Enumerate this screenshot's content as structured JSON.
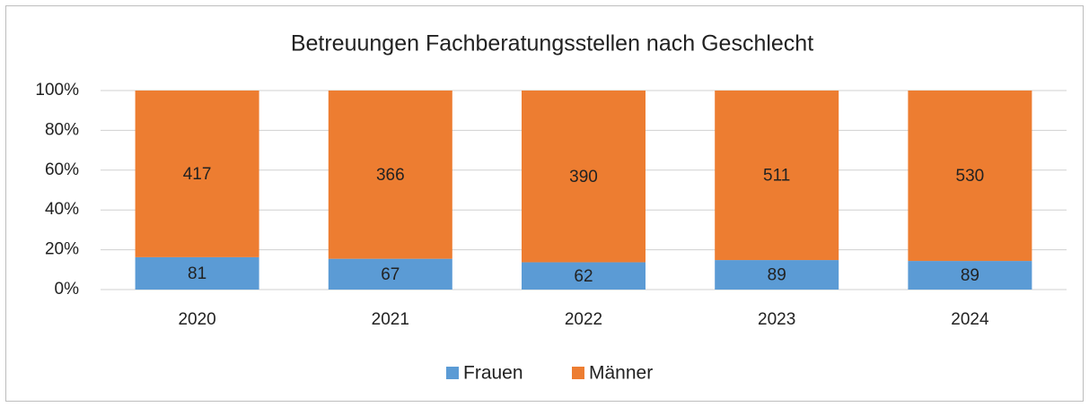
{
  "chart_data": {
    "type": "bar",
    "stacking": "percent",
    "title": "Betreuungen Fachberatungsstellen nach Geschlecht",
    "categories": [
      "2020",
      "2021",
      "2022",
      "2023",
      "2024"
    ],
    "series": [
      {
        "name": "Frauen",
        "color": "#5b9bd5",
        "values": [
          81,
          67,
          62,
          89,
          89
        ]
      },
      {
        "name": "Männer",
        "color": "#ed7d31",
        "values": [
          417,
          366,
          390,
          511,
          530
        ]
      }
    ],
    "ylim": [
      0,
      100
    ],
    "yticks": [
      {
        "value": 0,
        "label": "0%"
      },
      {
        "value": 20,
        "label": "20%"
      },
      {
        "value": 40,
        "label": "40%"
      },
      {
        "value": 60,
        "label": "60%"
      },
      {
        "value": 80,
        "label": "80%"
      },
      {
        "value": 100,
        "label": "100%"
      }
    ],
    "grid": true,
    "legend": "bottom"
  }
}
